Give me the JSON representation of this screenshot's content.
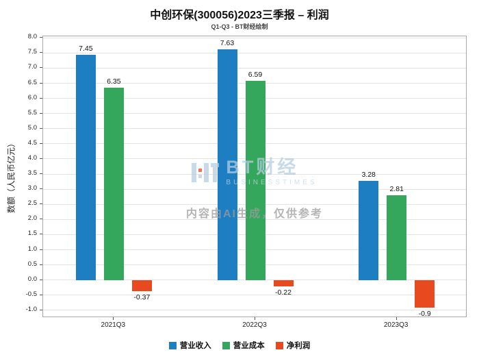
{
  "title": "中创环保(300056)2023三季报 – 利润",
  "subtitle": "Q1-Q3 - BT财经绘制",
  "watermark": {
    "logo_text": "BT财经",
    "logo_sub": "BUSINESSTIMES",
    "disclaimer": "内容由AI生成，仅供参考"
  },
  "chart_data": {
    "type": "bar",
    "title": "中创环保(300056)2023三季报 – 利润",
    "subtitle": "Q1-Q3 - BT财经绘制",
    "categories": [
      "2021Q3",
      "2022Q3",
      "2023Q3"
    ],
    "series": [
      {
        "name": "营业收入",
        "color": "#1d7fc2",
        "values": [
          7.45,
          7.63,
          3.28
        ]
      },
      {
        "name": "营业成本",
        "color": "#35a75c",
        "values": [
          6.35,
          6.59,
          2.81
        ]
      },
      {
        "name": "净利润",
        "color": "#e8491e",
        "values": [
          -0.37,
          -0.22,
          -0.9
        ]
      }
    ],
    "xlabel": "",
    "ylabel": "数额（人民币亿元）",
    "ylim": [
      -1.0,
      8.0
    ],
    "ytick_step": 0.5,
    "grid": true,
    "legend_position": "bottom"
  }
}
